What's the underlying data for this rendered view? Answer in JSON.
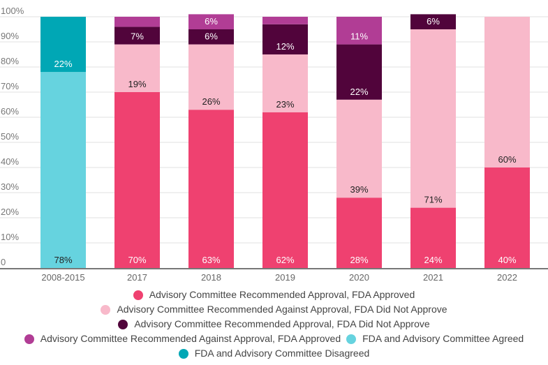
{
  "chart_data": {
    "type": "bar",
    "stacked": true,
    "title": "",
    "xlabel": "",
    "ylabel": "",
    "ylim": [
      0,
      100
    ],
    "y_ticks": [
      "0",
      "10%",
      "20%",
      "30%",
      "40%",
      "50%",
      "60%",
      "70%",
      "80%",
      "90%",
      "100%"
    ],
    "grid": true,
    "legend_position": "bottom",
    "categories": [
      "2008-2015",
      "2017",
      "2018",
      "2019",
      "2020",
      "2021",
      "2022"
    ],
    "series": [
      {
        "name": "FDA and Advisory Committee Agreed",
        "color": "#66d3df",
        "label_color": "#222222",
        "values": [
          78,
          0,
          0,
          0,
          0,
          0,
          0
        ],
        "labels": [
          "78%",
          "",
          "",
          "",
          "",
          "",
          ""
        ]
      },
      {
        "name": "FDA and Advisory Committee Disagreed",
        "color": "#00a7b5",
        "label_color": "#ffffff",
        "values": [
          22,
          0,
          0,
          0,
          0,
          0,
          0
        ],
        "labels": [
          "22%",
          "",
          "",
          "",
          "",
          "",
          ""
        ]
      },
      {
        "name": "Advisory Committee Recommended Approval, FDA Approved",
        "color": "#ef4170",
        "label_color": "#ffffff",
        "values": [
          0,
          70,
          63,
          62,
          28,
          24,
          40
        ],
        "labels": [
          "",
          "70%",
          "63%",
          "62%",
          "28%",
          "24%",
          "40%"
        ]
      },
      {
        "name": "Advisory Committee Recommended Against Approval, FDA Did Not Approve",
        "color": "#f8b9ca",
        "label_color": "#222222",
        "values": [
          0,
          19,
          26,
          23,
          39,
          71,
          60
        ],
        "labels": [
          "",
          "19%",
          "26%",
          "23%",
          "39%",
          "71%",
          "60%"
        ]
      },
      {
        "name": "Advisory Committee Recommended Approval, FDA Did Not Approve",
        "color": "#51043b",
        "label_color": "#ffffff",
        "values": [
          0,
          7,
          6,
          12,
          22,
          6,
          0
        ],
        "labels": [
          "",
          "7%",
          "6%",
          "12%",
          "22%",
          "6%",
          ""
        ]
      },
      {
        "name": "Advisory Committee Recommended Against Approval, FDA Approved",
        "color": "#b13d95",
        "label_color": "#ffffff",
        "values": [
          0,
          4,
          6,
          3,
          11,
          0,
          0
        ],
        "labels": [
          "",
          "",
          "6%",
          "",
          "11%",
          "",
          ""
        ]
      }
    ]
  },
  "legend": {
    "rows": [
      [
        {
          "label": "Advisory Committee Recommended Approval, FDA Approved",
          "color": "#ef4170"
        }
      ],
      [
        {
          "label": "Advisory Committee Recommended Against Approval, FDA Did Not Approve",
          "color": "#f8b9ca"
        }
      ],
      [
        {
          "label": "Advisory Committee Recommended Approval, FDA Did Not Approve",
          "color": "#51043b"
        }
      ],
      [
        {
          "label": "Advisory Committee Recommended Against Approval, FDA Approved",
          "color": "#b13d95"
        },
        {
          "label": "FDA and Advisory Committee Agreed",
          "color": "#66d3df"
        }
      ],
      [
        {
          "label": "FDA and Advisory Committee Disagreed",
          "color": "#00a7b5"
        }
      ]
    ]
  }
}
